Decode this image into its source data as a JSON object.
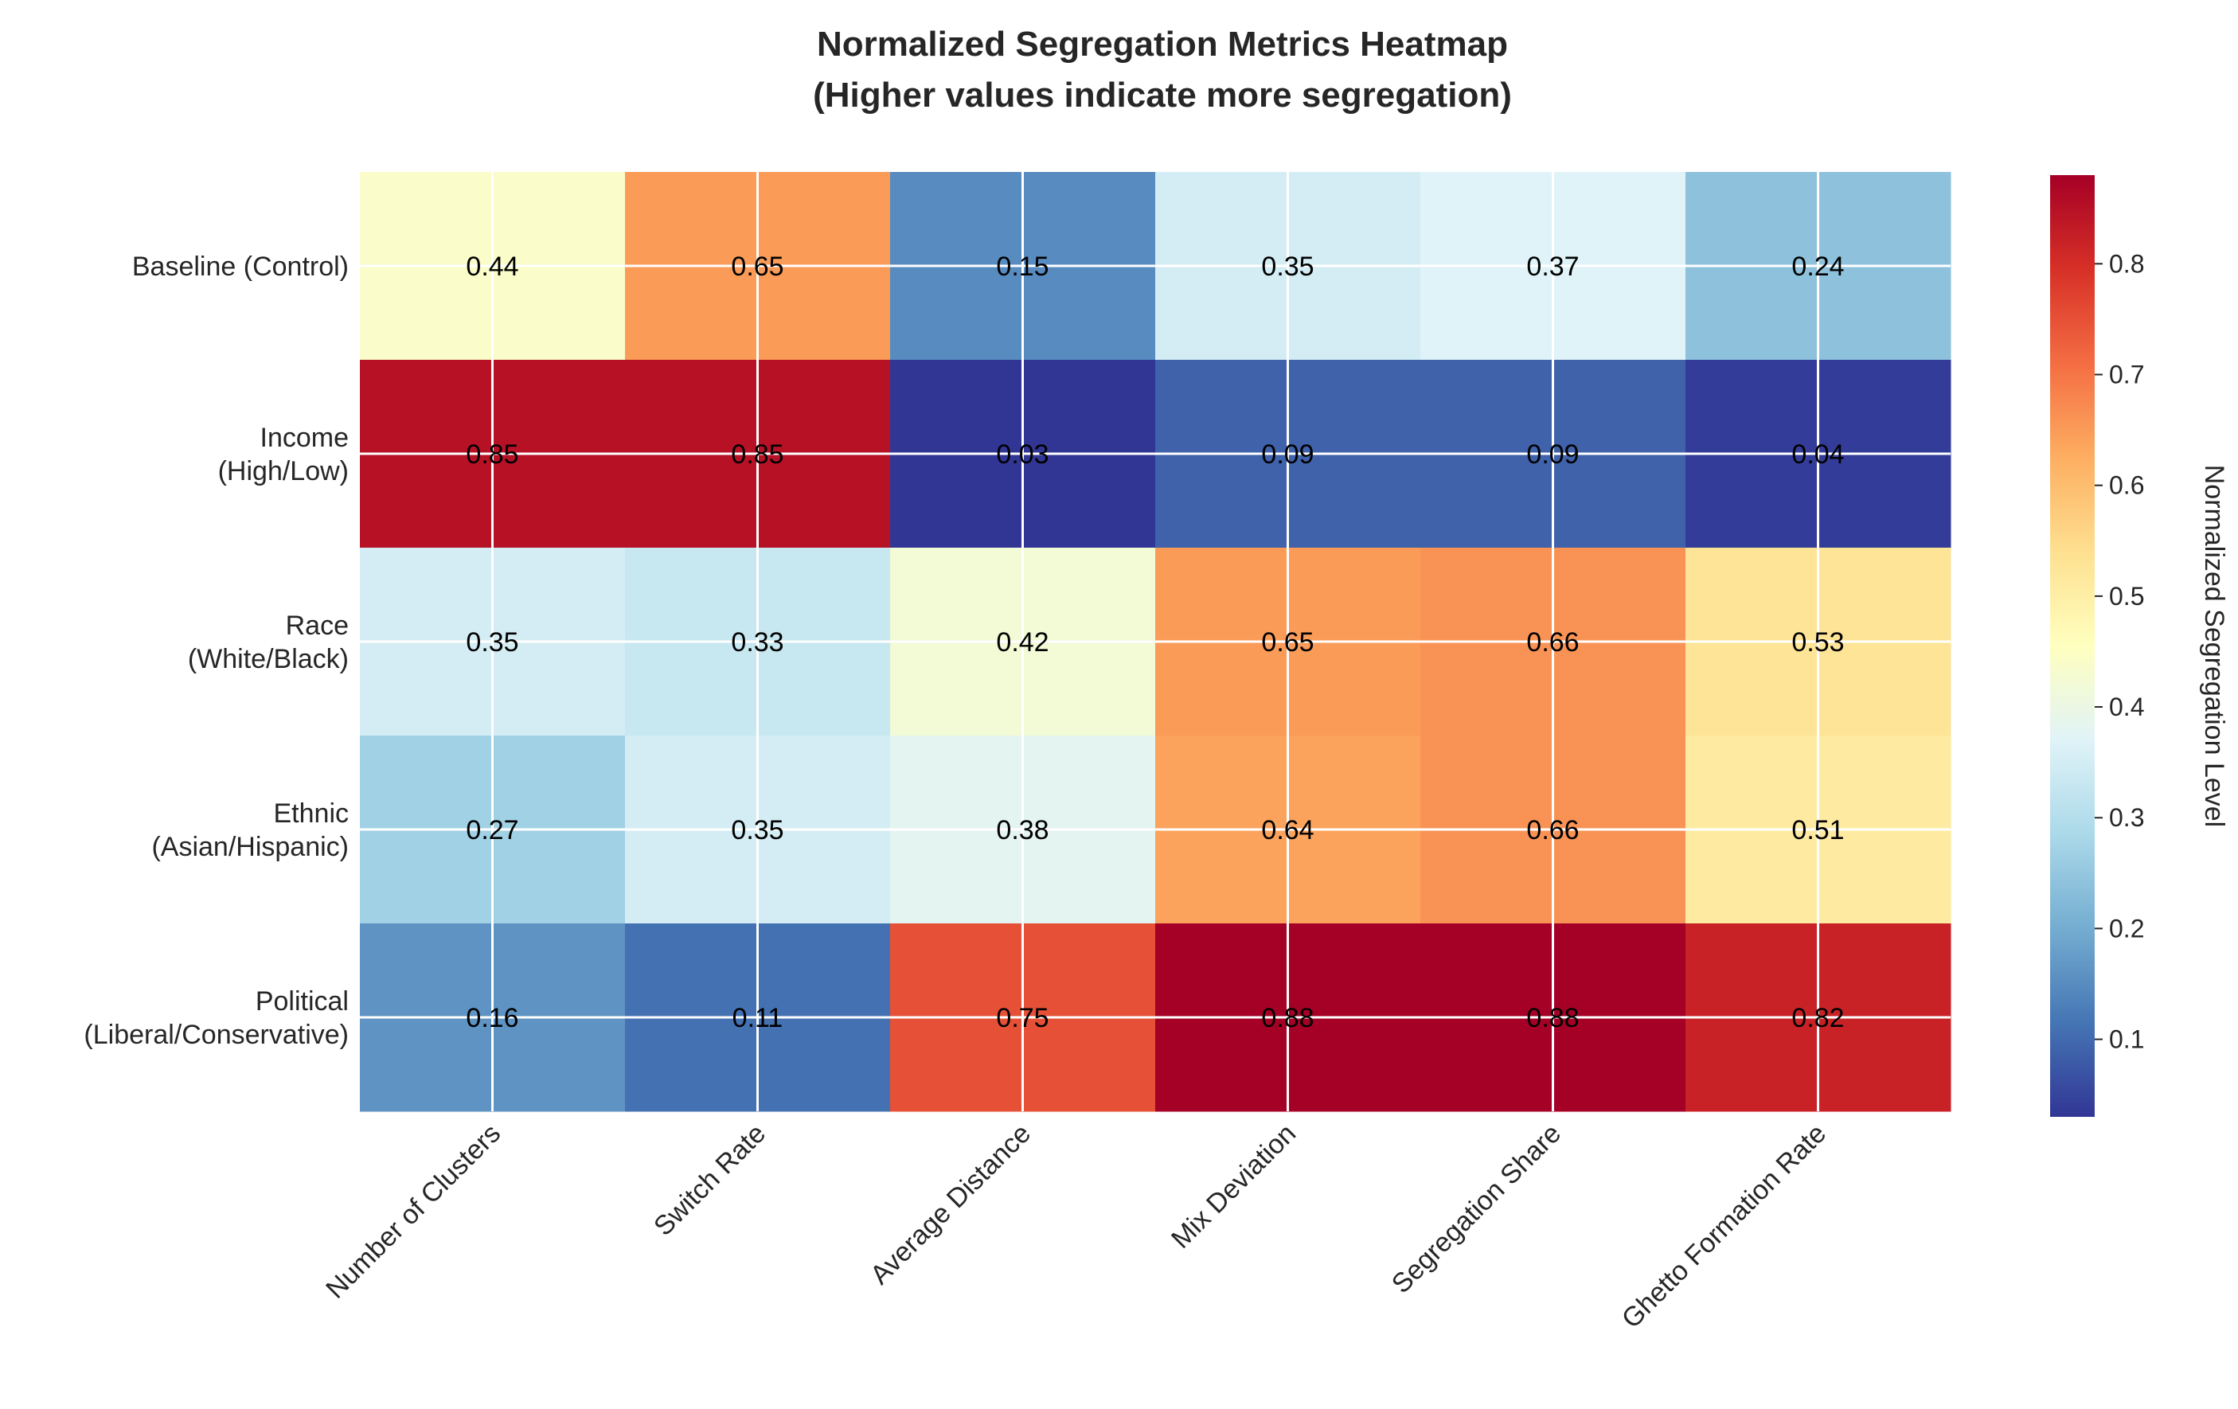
{
  "chart_data": {
    "type": "heatmap",
    "title_line1": "Normalized Segregation Metrics Heatmap",
    "title_line2": "(Higher values indicate more segregation)",
    "rows": [
      [
        "Baseline (Control)"
      ],
      [
        "Income",
        "(High/Low)"
      ],
      [
        "Race",
        "(White/Black)"
      ],
      [
        "Ethnic",
        "(Asian/Hispanic)"
      ],
      [
        "Political",
        "(Liberal/Conservative)"
      ]
    ],
    "columns": [
      "Number of Clusters",
      "Switch Rate",
      "Average Distance",
      "Mix Deviation",
      "Segregation Share",
      "Ghetto Formation Rate"
    ],
    "values": [
      [
        0.44,
        0.65,
        0.15,
        0.35,
        0.37,
        0.24
      ],
      [
        0.85,
        0.85,
        0.03,
        0.09,
        0.09,
        0.04
      ],
      [
        0.35,
        0.33,
        0.42,
        0.65,
        0.66,
        0.53
      ],
      [
        0.27,
        0.35,
        0.38,
        0.64,
        0.66,
        0.51
      ],
      [
        0.16,
        0.11,
        0.75,
        0.88,
        0.88,
        0.82
      ]
    ],
    "colormap": "RdYlBu_r",
    "vmin": 0.03,
    "vmax": 0.88,
    "colorbar": {
      "label": "Normalized Segregation Level",
      "ticks": [
        "0.1",
        "0.2",
        "0.3",
        "0.4",
        "0.5",
        "0.6",
        "0.7",
        "0.8"
      ]
    },
    "grid": true
  }
}
